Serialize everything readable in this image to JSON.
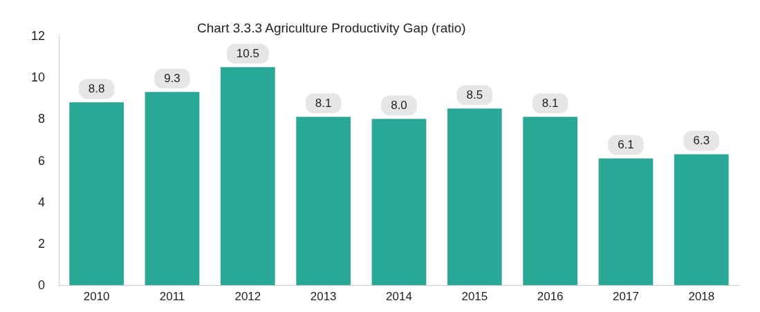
{
  "chart_data": {
    "type": "bar",
    "title": "Chart 3.3.3 Agriculture Productivity Gap (ratio)",
    "categories": [
      "2010",
      "2011",
      "2012",
      "2013",
      "2014",
      "2015",
      "2016",
      "2017",
      "2018"
    ],
    "values": [
      8.8,
      9.3,
      10.5,
      8.1,
      8.0,
      8.5,
      8.1,
      6.1,
      6.3
    ],
    "color": "#2aa896",
    "ylim": [
      0,
      12
    ],
    "yticks": [
      0,
      2,
      4,
      6,
      8,
      10,
      12
    ],
    "grid": false,
    "value_labels": [
      "8.8",
      "9.3",
      "10.5",
      "8.1",
      "8.0",
      "8.5",
      "8.1",
      "6.1",
      "6.3"
    ]
  }
}
